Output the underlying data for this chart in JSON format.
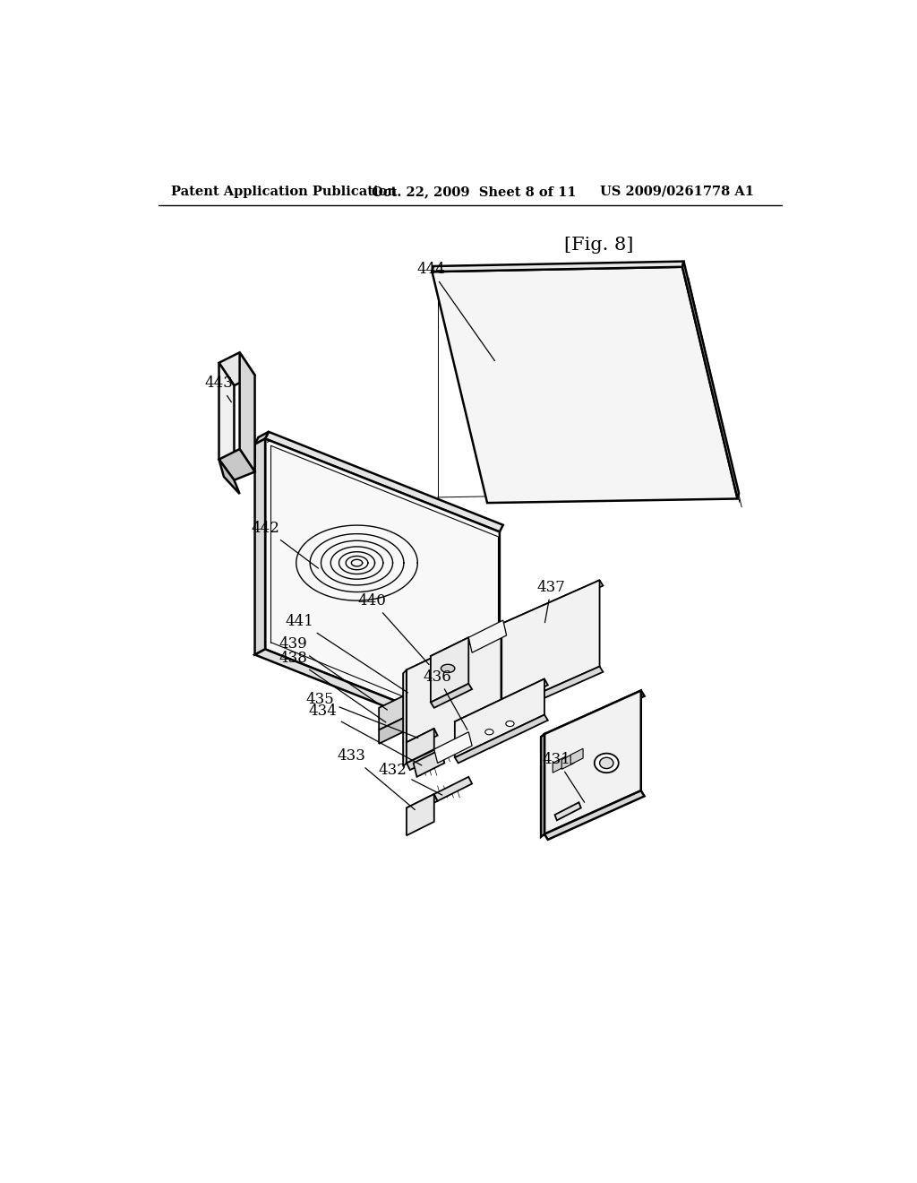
{
  "header_left": "Patent Application Publication",
  "header_mid": "Oct. 22, 2009  Sheet 8 of 11",
  "header_right": "US 2009/0261778 A1",
  "fig_label": "[Fig. 8]",
  "bg_color": "#ffffff",
  "lc": "#000000",
  "figsize": [
    10.24,
    13.2
  ],
  "dpi": 100,
  "gray1": "#f0f0f0",
  "gray2": "#e0e0e0",
  "gray3": "#d0d0d0",
  "gray4": "#c0c0c0",
  "white": "#ffffff"
}
